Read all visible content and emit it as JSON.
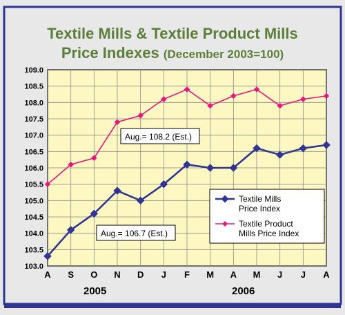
{
  "title_line1": "Textile Mills & Textile Product Mills",
  "title_line2": "Price Indexes",
  "title_subtitle": "(December 2003=100)",
  "years": [
    "2005",
    "2006"
  ],
  "annotations": {
    "product_mills": "Aug.= 108.2 (Est.)",
    "textile_mills": "Aug.= 106.7 (Est.)"
  },
  "colors": {
    "frame_border": "#2f3590",
    "plot_bg": "#fdf7c2",
    "grid": "#8a8a8a",
    "textile_mills": "#2f3590",
    "product_mills": "#e6177f",
    "title": "#5b7f3a"
  },
  "chart_data": {
    "type": "line",
    "categories": [
      "A",
      "S",
      "O",
      "N",
      "D",
      "J",
      "F",
      "M",
      "A",
      "M",
      "J",
      "J",
      "A"
    ],
    "ylim": [
      103.0,
      109.0
    ],
    "yticks": [
      "103.0",
      "103.5",
      "104.0",
      "104.5",
      "105.0",
      "105.5",
      "106.0",
      "106.5",
      "107.0",
      "107.5",
      "108.0",
      "108.5",
      "109.0"
    ],
    "grid": true,
    "legend_position": "right",
    "series": [
      {
        "name": "Textile Mills Price Index",
        "marker": "diamond",
        "values": [
          103.3,
          104.1,
          104.6,
          105.3,
          105.0,
          105.5,
          106.1,
          106.0,
          106.0,
          106.6,
          106.4,
          106.6,
          106.7
        ]
      },
      {
        "name": "Textile Product Mills Price Index",
        "marker": "diamond",
        "values": [
          105.5,
          106.1,
          106.3,
          107.4,
          107.6,
          108.1,
          108.4,
          107.9,
          108.2,
          108.4,
          107.9,
          108.1,
          108.2
        ]
      }
    ]
  }
}
